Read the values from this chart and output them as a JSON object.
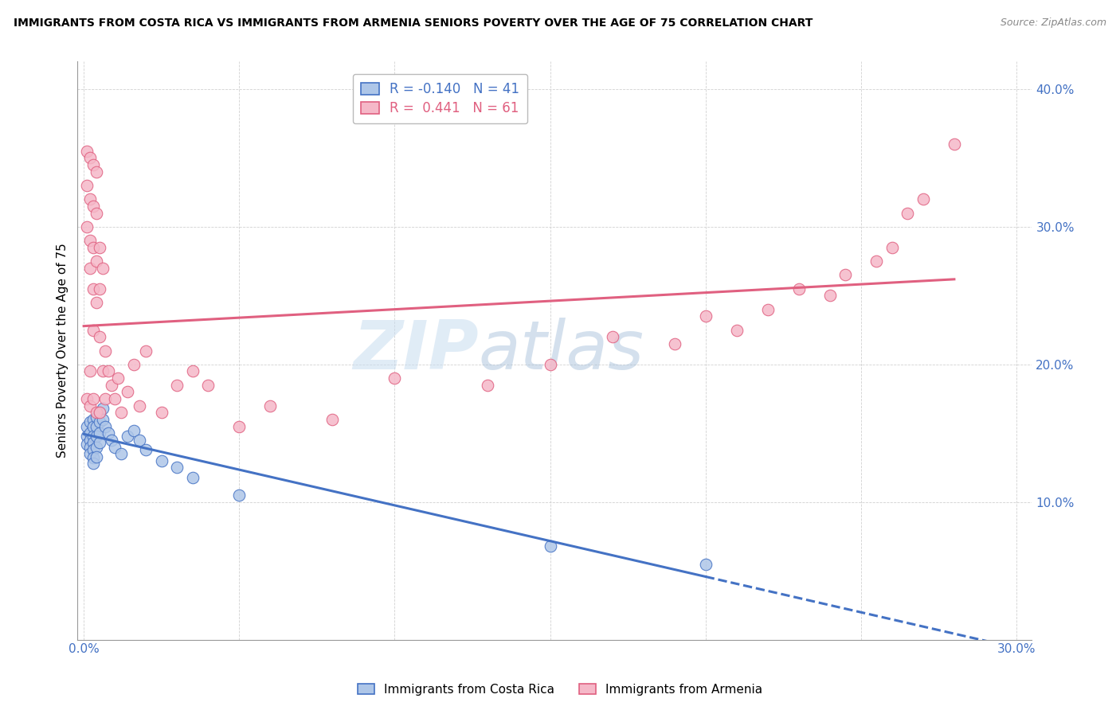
{
  "title": "IMMIGRANTS FROM COSTA RICA VS IMMIGRANTS FROM ARMENIA SENIORS POVERTY OVER THE AGE OF 75 CORRELATION CHART",
  "source": "Source: ZipAtlas.com",
  "ylabel": "Seniors Poverty Over the Age of 75",
  "xlim": [
    -0.002,
    0.305
  ],
  "ylim": [
    0.0,
    0.42
  ],
  "x_ticks": [
    0.0,
    0.05,
    0.1,
    0.15,
    0.2,
    0.25,
    0.3
  ],
  "y_ticks": [
    0.0,
    0.1,
    0.2,
    0.3,
    0.4
  ],
  "costa_rica_color": "#aec6e8",
  "armenia_color": "#f5b8c8",
  "costa_rica_line_color": "#4472c4",
  "armenia_line_color": "#e06080",
  "legend_R_costa_rica": "-0.140",
  "legend_N_costa_rica": "41",
  "legend_R_armenia": "0.441",
  "legend_N_armenia": "61",
  "watermark_zip": "ZIP",
  "watermark_atlas": "atlas",
  "costa_rica_x": [
    0.001,
    0.001,
    0.001,
    0.002,
    0.002,
    0.002,
    0.002,
    0.002,
    0.003,
    0.003,
    0.003,
    0.003,
    0.003,
    0.003,
    0.003,
    0.004,
    0.004,
    0.004,
    0.004,
    0.004,
    0.005,
    0.005,
    0.005,
    0.005,
    0.006,
    0.006,
    0.007,
    0.008,
    0.009,
    0.01,
    0.012,
    0.014,
    0.016,
    0.018,
    0.02,
    0.025,
    0.03,
    0.035,
    0.05,
    0.15,
    0.2
  ],
  "costa_rica_y": [
    0.155,
    0.148,
    0.142,
    0.158,
    0.15,
    0.145,
    0.14,
    0.135,
    0.16,
    0.155,
    0.148,
    0.143,
    0.138,
    0.132,
    0.128,
    0.162,
    0.155,
    0.148,
    0.14,
    0.133,
    0.165,
    0.158,
    0.15,
    0.143,
    0.168,
    0.16,
    0.155,
    0.15,
    0.145,
    0.14,
    0.135,
    0.148,
    0.152,
    0.145,
    0.138,
    0.13,
    0.125,
    0.118,
    0.105,
    0.068,
    0.055
  ],
  "armenia_x": [
    0.001,
    0.001,
    0.001,
    0.001,
    0.002,
    0.002,
    0.002,
    0.002,
    0.002,
    0.002,
    0.003,
    0.003,
    0.003,
    0.003,
    0.003,
    0.003,
    0.004,
    0.004,
    0.004,
    0.004,
    0.004,
    0.005,
    0.005,
    0.005,
    0.005,
    0.006,
    0.006,
    0.007,
    0.007,
    0.008,
    0.009,
    0.01,
    0.011,
    0.012,
    0.014,
    0.016,
    0.018,
    0.02,
    0.025,
    0.03,
    0.035,
    0.04,
    0.05,
    0.06,
    0.08,
    0.1,
    0.13,
    0.15,
    0.17,
    0.19,
    0.2,
    0.21,
    0.22,
    0.23,
    0.24,
    0.245,
    0.255,
    0.26,
    0.265,
    0.27,
    0.28
  ],
  "armenia_y": [
    0.355,
    0.33,
    0.3,
    0.175,
    0.35,
    0.32,
    0.29,
    0.27,
    0.195,
    0.17,
    0.345,
    0.315,
    0.285,
    0.255,
    0.225,
    0.175,
    0.34,
    0.31,
    0.275,
    0.245,
    0.165,
    0.285,
    0.255,
    0.22,
    0.165,
    0.27,
    0.195,
    0.21,
    0.175,
    0.195,
    0.185,
    0.175,
    0.19,
    0.165,
    0.18,
    0.2,
    0.17,
    0.21,
    0.165,
    0.185,
    0.195,
    0.185,
    0.155,
    0.17,
    0.16,
    0.19,
    0.185,
    0.2,
    0.22,
    0.215,
    0.235,
    0.225,
    0.24,
    0.255,
    0.25,
    0.265,
    0.275,
    0.285,
    0.31,
    0.32,
    0.36
  ]
}
